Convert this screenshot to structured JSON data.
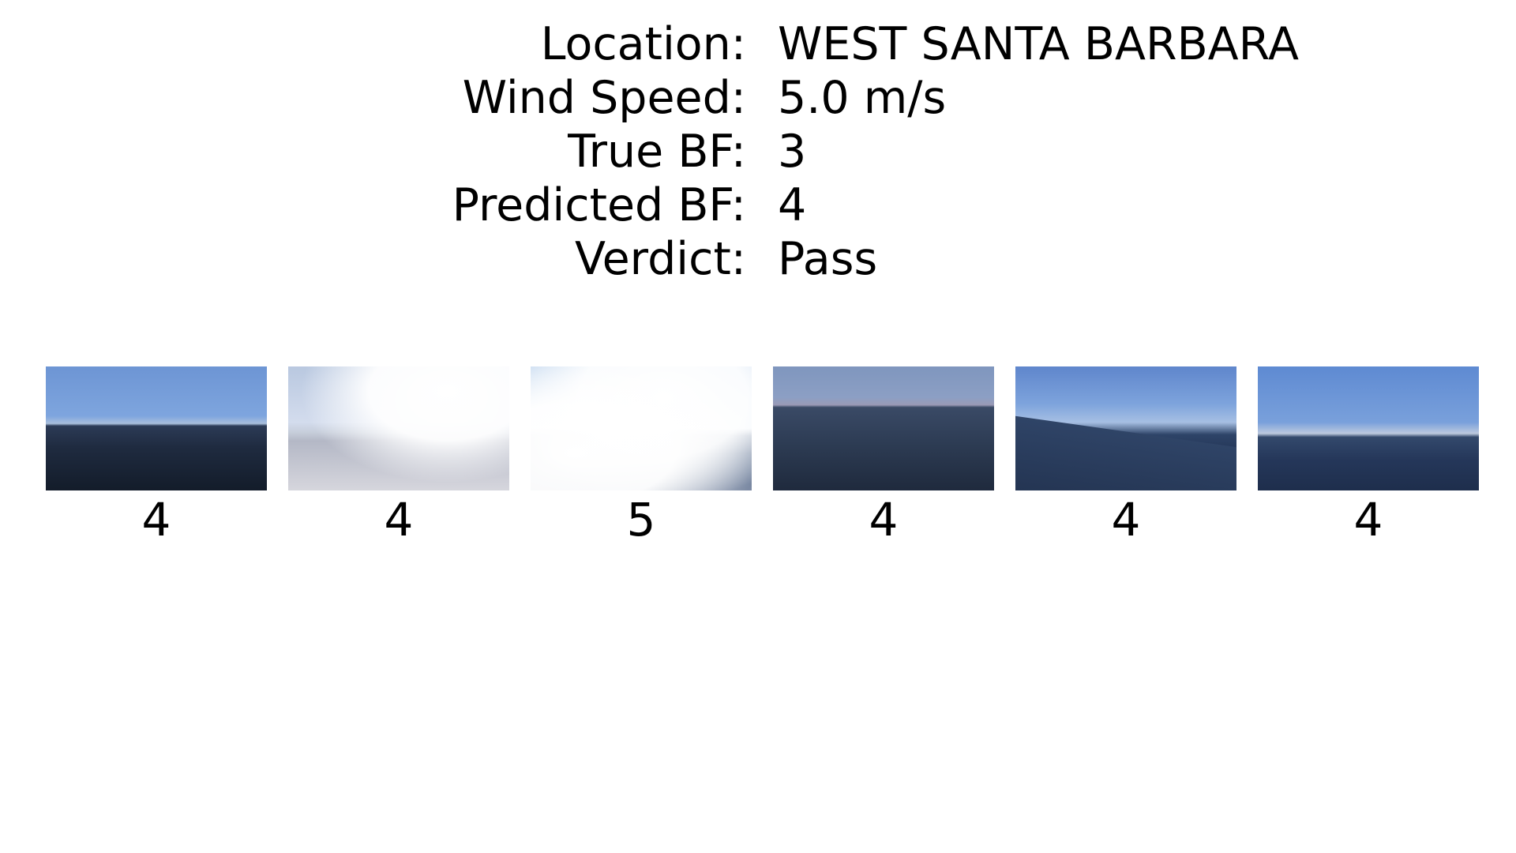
{
  "info": [
    {
      "label": "Location:",
      "value": "WEST SANTA BARBARA"
    },
    {
      "label": "Wind Speed:",
      "value": "5.0 m/s"
    },
    {
      "label": "True BF:",
      "value": "3"
    },
    {
      "label": "Predicted BF:",
      "value": "4"
    },
    {
      "label": "Verdict:",
      "value": "Pass"
    }
  ],
  "thumbnails": [
    {
      "prediction": "4",
      "scene": "dark-sea"
    },
    {
      "prediction": "4",
      "scene": "bright-sea"
    },
    {
      "prediction": "5",
      "scene": "glare-sea"
    },
    {
      "prediction": "4",
      "scene": "hazy-sea"
    },
    {
      "prediction": "4",
      "scene": "tilted-sea"
    },
    {
      "prediction": "4",
      "scene": "calm-sea"
    }
  ]
}
